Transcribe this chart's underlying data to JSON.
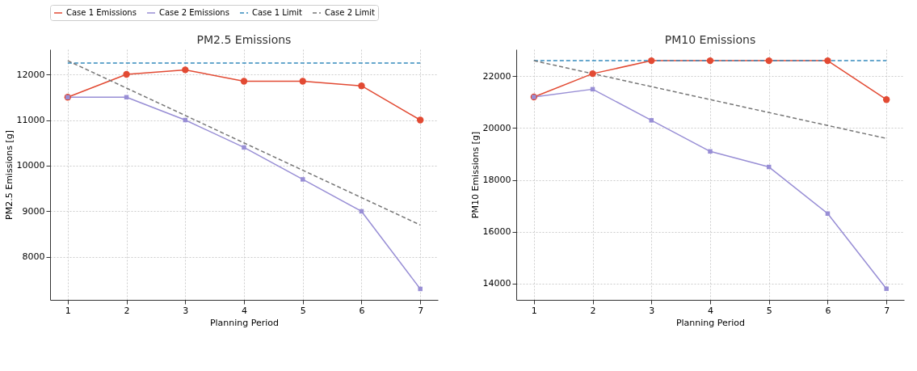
{
  "chart_data": [
    {
      "type": "line",
      "title": "PM2.5 Emissions",
      "xlabel": "Planning Period",
      "ylabel": "PM2.5 Emissions [g]",
      "x": [
        1,
        2,
        3,
        4,
        5,
        6,
        7
      ],
      "xlim": [
        0.7,
        7.3
      ],
      "xticks": [
        1,
        2,
        3,
        4,
        5,
        6,
        7
      ],
      "ylim": [
        7060,
        12550
      ],
      "yticks": [
        8000,
        9000,
        10000,
        11000,
        12000
      ],
      "grid": true,
      "legend": "top",
      "series": [
        {
          "name": "Case 1 Emissions",
          "color": "#e24a33",
          "marker": "circle",
          "line_style": "solid",
          "values": [
            11500,
            12000,
            12100,
            11850,
            11850,
            11750,
            11000
          ]
        },
        {
          "name": "Case 2 Emissions",
          "color": "#988ed5",
          "marker": "square",
          "line_style": "solid",
          "values": [
            11500,
            11500,
            11000,
            10400,
            9700,
            9000,
            7300
          ]
        },
        {
          "name": "Case 1 Limit",
          "color": "#348abd",
          "marker": "none",
          "line_style": "dashed",
          "values": [
            12250,
            12250,
            12250,
            12250,
            12250,
            12250,
            12250
          ]
        },
        {
          "name": "Case 2 Limit",
          "color": "#777777",
          "marker": "none",
          "line_style": "dashed",
          "values": [
            12300,
            11700,
            11100,
            10500,
            9900,
            9300,
            8700
          ]
        }
      ]
    },
    {
      "type": "line",
      "title": "PM10 Emissions",
      "xlabel": "Planning Period",
      "ylabel": "PM10 Emissions [g]",
      "x": [
        1,
        2,
        3,
        4,
        5,
        6,
        7
      ],
      "xlim": [
        0.7,
        7.3
      ],
      "xticks": [
        1,
        2,
        3,
        4,
        5,
        6,
        7
      ],
      "ylim": [
        13370,
        23040
      ],
      "yticks": [
        14000,
        16000,
        18000,
        20000,
        22000
      ],
      "grid": true,
      "legend": "top",
      "series": [
        {
          "name": "Case 1 Emissions",
          "color": "#e24a33",
          "marker": "circle",
          "line_style": "solid",
          "values": [
            21200,
            22100,
            22600,
            22600,
            22600,
            22600,
            21100
          ]
        },
        {
          "name": "Case 2 Emissions",
          "color": "#988ed5",
          "marker": "square",
          "line_style": "solid",
          "values": [
            21200,
            21500,
            20300,
            19100,
            18500,
            16700,
            13800
          ]
        },
        {
          "name": "Case 1 Limit",
          "color": "#348abd",
          "marker": "none",
          "line_style": "dashed",
          "values": [
            22600,
            22600,
            22600,
            22600,
            22600,
            22600,
            22600
          ]
        },
        {
          "name": "Case 2 Limit",
          "color": "#777777",
          "marker": "none",
          "line_style": "dashed",
          "values": [
            22600,
            22100,
            21600,
            21100,
            20600,
            20100,
            19600
          ]
        }
      ]
    }
  ]
}
